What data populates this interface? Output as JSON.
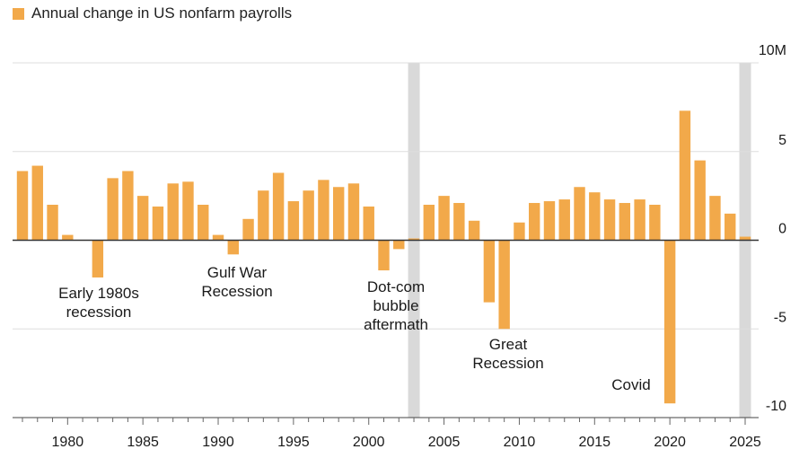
{
  "colors": {
    "bar": "#f2a94a",
    "grid": "#dddddd",
    "zero": "#333333",
    "shade": "#d9d9d9",
    "text": "#1a1a1a"
  },
  "chart_data": {
    "type": "bar",
    "legend": "Annual change in US nonfarm payrolls",
    "y_unit_label": "10M",
    "ylim": [
      -10,
      10
    ],
    "y_ticks": [
      {
        "value": 10,
        "label": "10M"
      },
      {
        "value": 5,
        "label": "5"
      },
      {
        "value": 0,
        "label": "0"
      },
      {
        "value": -5,
        "label": "-5"
      },
      {
        "value": -10,
        "label": "-10"
      }
    ],
    "x_ticks": [
      "1980",
      "1985",
      "1990",
      "1995",
      "2000",
      "2005",
      "2010",
      "2015",
      "2020",
      "2025"
    ],
    "x_tick_years": [
      1980,
      1985,
      1990,
      1995,
      2000,
      2005,
      2010,
      2015,
      2020,
      2025
    ],
    "x_range": [
      1976.5,
      2026
    ],
    "shaded_years": [
      2003,
      2025
    ],
    "series": [
      {
        "name": "Annual change in US nonfarm payrolls",
        "years": [
          1977,
          1978,
          1979,
          1980,
          1981,
          1982,
          1983,
          1984,
          1985,
          1986,
          1987,
          1988,
          1989,
          1990,
          1991,
          1992,
          1993,
          1994,
          1995,
          1996,
          1997,
          1998,
          1999,
          2000,
          2001,
          2002,
          2003,
          2004,
          2005,
          2006,
          2007,
          2008,
          2009,
          2010,
          2011,
          2012,
          2013,
          2014,
          2015,
          2016,
          2017,
          2018,
          2019,
          2020,
          2021,
          2022,
          2023,
          2024,
          2025
        ],
        "values": [
          3.9,
          4.2,
          2.0,
          0.3,
          0.0,
          -2.1,
          3.5,
          3.9,
          2.5,
          1.9,
          3.2,
          3.3,
          2.0,
          0.3,
          -0.8,
          1.2,
          2.8,
          3.8,
          2.2,
          2.8,
          3.4,
          3.0,
          3.2,
          1.9,
          -1.7,
          -0.5,
          0.1,
          2.0,
          2.5,
          2.1,
          1.1,
          -3.5,
          -5.0,
          1.0,
          2.1,
          2.2,
          2.3,
          3.0,
          2.7,
          2.3,
          2.1,
          2.3,
          2.0,
          -9.2,
          7.3,
          4.5,
          2.5,
          1.5,
          0.2
        ]
      }
    ],
    "annotations": [
      {
        "lines": [
          "Early 1980s",
          "recession"
        ]
      },
      {
        "lines": [
          "Gulf War",
          "Recession"
        ]
      },
      {
        "lines": [
          "Dot-com",
          "bubble",
          "aftermath"
        ]
      },
      {
        "lines": [
          "Great",
          "Recession"
        ]
      },
      {
        "lines": [
          "Covid"
        ]
      }
    ]
  }
}
